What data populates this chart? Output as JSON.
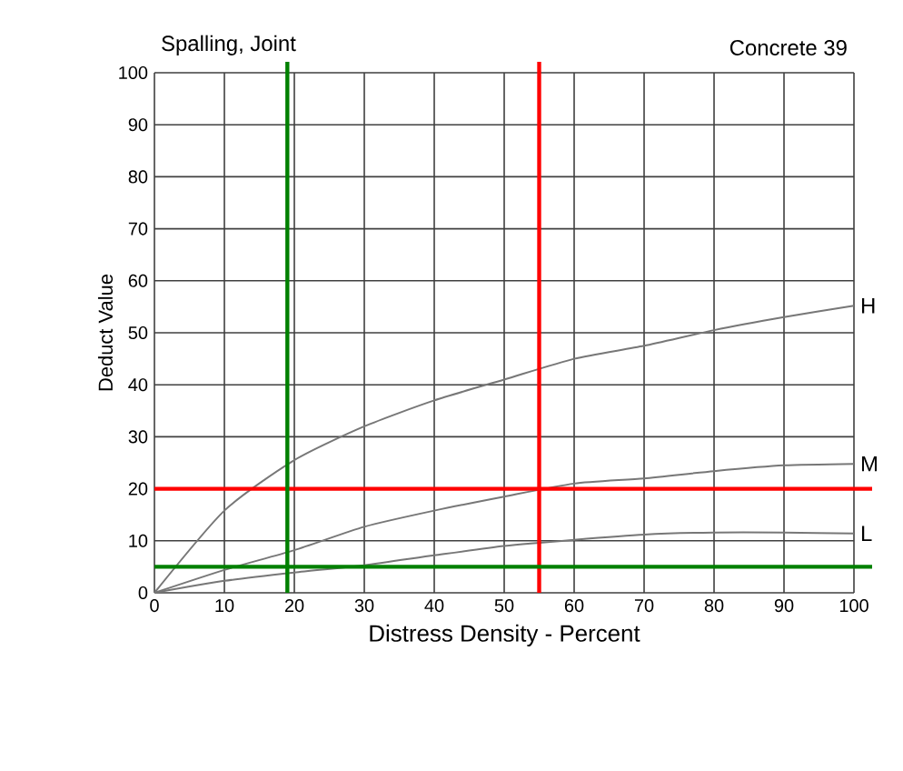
{
  "chart_data": {
    "type": "line",
    "title": "Spalling, Joint",
    "subtitle": "Concrete 39",
    "xlabel": "Distress Density - Percent",
    "ylabel": "Deduct Value",
    "x": [
      0,
      10,
      20,
      30,
      40,
      50,
      60,
      70,
      80,
      90,
      100
    ],
    "series": [
      {
        "name": "H",
        "color": "#777777",
        "values": [
          0,
          15.8,
          25.5,
          32,
          37,
          41,
          45,
          47.5,
          50.5,
          53,
          55.2
        ]
      },
      {
        "name": "M",
        "color": "#777777",
        "values": [
          0,
          4.4,
          8.2,
          12.7,
          15.8,
          18.5,
          21,
          22,
          23.4,
          24.5,
          24.8
        ]
      },
      {
        "name": "L",
        "color": "#777777",
        "values": [
          0,
          2.3,
          3.9,
          5.3,
          7.2,
          9,
          10.2,
          11.2,
          11.6,
          11.6,
          11.4
        ]
      }
    ],
    "xlim": [
      0,
      100
    ],
    "ylim": [
      0,
      100
    ],
    "xticks": [
      0,
      10,
      20,
      30,
      40,
      50,
      60,
      70,
      80,
      90,
      100
    ],
    "yticks": [
      0,
      10,
      20,
      30,
      40,
      50,
      60,
      70,
      80,
      90,
      100
    ],
    "grid": true,
    "legend": false,
    "marker": "none",
    "line_style": "solid",
    "ref_lines": [
      {
        "axis": "x",
        "value": 55,
        "color": "#ff0000"
      },
      {
        "axis": "y",
        "value": 20,
        "color": "#ff0000"
      },
      {
        "axis": "x",
        "value": 19,
        "color": "#008000"
      },
      {
        "axis": "y",
        "value": 5,
        "color": "#008000"
      }
    ]
  }
}
